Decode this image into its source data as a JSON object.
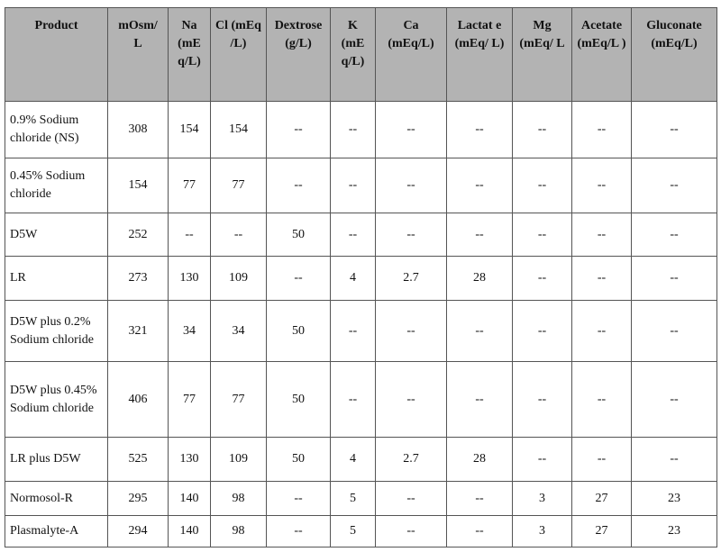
{
  "headers": [
    "Product",
    "mOsm/ L",
    "Na (mE q/L)",
    "Cl (mEq /L)",
    "Dextrose (g/L)",
    "K (mE q/L)",
    "Ca (mEq/L)",
    "Lactat e (mEq/ L)",
    "Mg (mEq/ L",
    "Acetate (mEq/L )",
    "Gluconate (mEq/L)"
  ],
  "rows": [
    [
      "0.9% Sodium chloride (NS)",
      "308",
      "154",
      "154",
      "--",
      "--",
      "--",
      "--",
      "--",
      "--",
      "--"
    ],
    [
      "0.45% Sodium chloride",
      "154",
      "77",
      "77",
      "--",
      "--",
      "--",
      "--",
      "--",
      "--",
      "--"
    ],
    [
      "D5W",
      "252",
      "--",
      "--",
      "50",
      "--",
      "--",
      "--",
      "--",
      "--",
      "--"
    ],
    [
      "LR",
      "273",
      "130",
      "109",
      "--",
      "4",
      "2.7",
      "28",
      "--",
      "--",
      "--"
    ],
    [
      "D5W plus 0.2% Sodium chloride",
      "321",
      "34",
      "34",
      "50",
      "--",
      "--",
      "--",
      "--",
      "--",
      "--"
    ],
    [
      "D5W plus 0.45% Sodium chloride",
      "406",
      "77",
      "77",
      "50",
      "--",
      "--",
      "--",
      "--",
      "--",
      "--"
    ],
    [
      "LR plus D5W",
      "525",
      "130",
      "109",
      "50",
      "4",
      "2.7",
      "28",
      "--",
      "--",
      "--"
    ],
    [
      "Normosol-R",
      "295",
      "140",
      "98",
      "--",
      "5",
      "--",
      "--",
      "3",
      "27",
      "23"
    ],
    [
      "Plasmalyte-A",
      "294",
      "140",
      "98",
      "--",
      "5",
      "--",
      "--",
      "3",
      "27",
      "23"
    ]
  ]
}
